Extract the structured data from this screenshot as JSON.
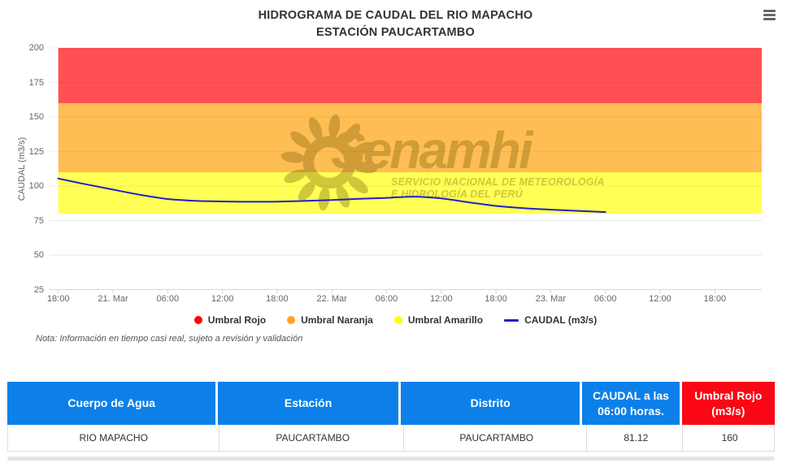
{
  "header": {
    "title_line1": "HIDROGRAMA DE CAUDAL DEL RIO MAPACHO",
    "title_line2": "ESTACIÓN PAUCARTAMBO"
  },
  "chart_data": {
    "type": "line",
    "title": "HIDROGRAMA DE CAUDAL DEL RIO MAPACHO",
    "subtitle": "ESTACIÓN PAUCARTAMBO",
    "ylabel": "CAUDAL (m3/s)",
    "ylim": [
      25,
      200
    ],
    "yticks": [
      25,
      50,
      75,
      100,
      125,
      150,
      175,
      200
    ],
    "x_tick_labels": [
      "18:00",
      "21. Mar",
      "06:00",
      "12:00",
      "18:00",
      "22. Mar",
      "06:00",
      "12:00",
      "18:00",
      "23. Mar",
      "06:00",
      "12:00",
      "18:00"
    ],
    "x_tick_interval_hours": 6,
    "grid": true,
    "legend_position": "bottom",
    "plot_bands": [
      {
        "name": "Umbral Rojo",
        "from": 160,
        "to": 200,
        "color": "#FF5053"
      },
      {
        "name": "Umbral Naranja",
        "from": 110,
        "to": 160,
        "color": "#FFBE53"
      },
      {
        "name": "Umbral Amarillo",
        "from": 80,
        "to": 110,
        "color": "#FFFF55"
      }
    ],
    "series": [
      {
        "name": "CAUDAL (m3/s)",
        "color": "#2020CE",
        "x_unit": "tick_index (1 tick = 6 horas)",
        "points": [
          [
            0,
            105.4
          ],
          [
            0.5,
            101.3
          ],
          [
            1,
            97.4
          ],
          [
            1.5,
            93.6
          ],
          [
            2,
            90.6
          ],
          [
            2.5,
            89.3
          ],
          [
            3,
            88.8
          ],
          [
            3.5,
            88.6
          ],
          [
            4,
            88.7
          ],
          [
            4.5,
            89.2
          ],
          [
            5,
            89.9
          ],
          [
            5.5,
            90.7
          ],
          [
            6,
            91.4
          ],
          [
            6.5,
            92.3
          ],
          [
            7,
            91.0
          ],
          [
            7.5,
            88.2
          ],
          [
            8,
            85.6
          ],
          [
            8.5,
            84.0
          ],
          [
            9,
            82.9
          ],
          [
            9.5,
            82.0
          ],
          [
            10,
            81.12
          ]
        ],
        "last_value": 81.12
      }
    ],
    "legend": [
      {
        "label": "Umbral Rojo",
        "color": "#FF0000",
        "marker": "circle"
      },
      {
        "label": "Umbral Naranja",
        "color": "#FFA21F",
        "marker": "circle"
      },
      {
        "label": "Umbral Amarillo",
        "color": "#FFFF00",
        "marker": "circle"
      },
      {
        "label": "CAUDAL (m3/s)",
        "color": "#2020CE",
        "marker": "line"
      }
    ]
  },
  "note": "Nota: Información en tiempo casi real, sujeto a revisión y validación",
  "watermark": {
    "brand": "Senamhi",
    "tagline_line1": "SERVICIO NACIONAL DE METEOROLOGÍA",
    "tagline_line2": "E HIDROLOGÍA DEL PERÚ"
  },
  "table": {
    "headers": [
      {
        "label": "Cuerpo de Agua",
        "bg": "#0C80E8"
      },
      {
        "label": "Estación",
        "bg": "#0C80E8"
      },
      {
        "label": "Distrito",
        "bg": "#0C80E8"
      },
      {
        "label": "CAUDAL a las 06:00 horas.",
        "bg": "#0C80E8"
      },
      {
        "label": "Umbral Rojo (m3/s)",
        "bg": "#F90714"
      }
    ],
    "rows": [
      [
        "RIO MAPACHO",
        "PAUCARTAMBO",
        "PAUCARTAMBO",
        "81.12",
        "160"
      ]
    ]
  }
}
